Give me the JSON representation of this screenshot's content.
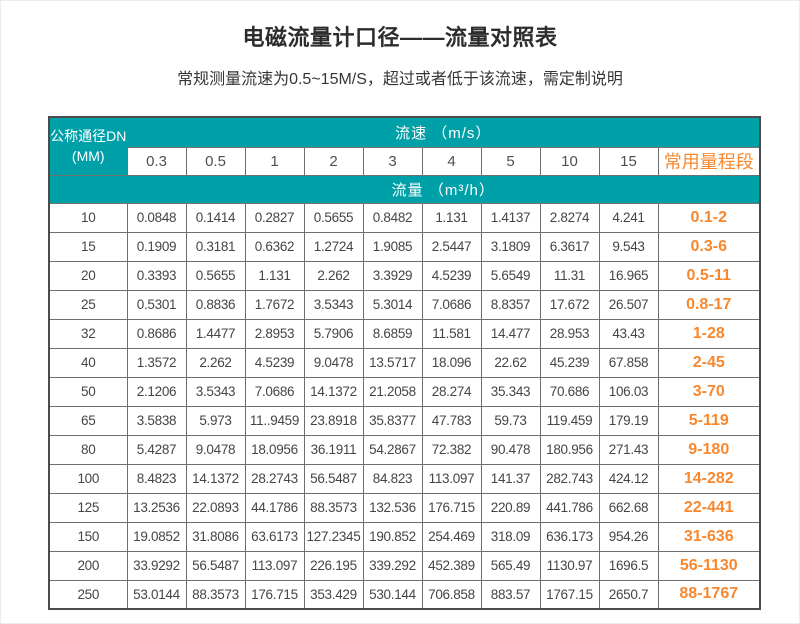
{
  "page": {
    "title": "电磁流量计口径——流量对照表",
    "subtitle": "常规测量流速为0.5~15M/S，超过或者低于该流速，需定制说明"
  },
  "colors": {
    "teal_header": "#00A0A8",
    "accent_orange": "#F7882F",
    "grid_line": "#6F6F6F",
    "data_text": "#454545"
  },
  "chart_data": {
    "type": "table",
    "title": "电磁流量计口径——流量对照表",
    "corner": {
      "line1": "公称通径DN",
      "line2": "(MM)"
    },
    "speed_group_header": "流速 （m/s）",
    "flow_group_header": "流量 （m³/h）",
    "range_header": "常用量程段",
    "speed_columns": [
      "0.3",
      "0.5",
      "1",
      "2",
      "3",
      "4",
      "5",
      "10",
      "15"
    ],
    "rows": [
      {
        "dn": "10",
        "values": [
          "0.0848",
          "0.1414",
          "0.2827",
          "0.5655",
          "0.8482",
          "1.131",
          "1.4137",
          "2.8274",
          "4.241"
        ],
        "range": "0.1-2"
      },
      {
        "dn": "15",
        "values": [
          "0.1909",
          "0.3181",
          "0.6362",
          "1.2724",
          "1.9085",
          "2.5447",
          "3.1809",
          "6.3617",
          "9.543"
        ],
        "range": "0.3-6"
      },
      {
        "dn": "20",
        "values": [
          "0.3393",
          "0.5655",
          "1.131",
          "2.262",
          "3.3929",
          "4.5239",
          "5.6549",
          "11.31",
          "16.965"
        ],
        "range": "0.5-11"
      },
      {
        "dn": "25",
        "values": [
          "0.5301",
          "0.8836",
          "1.7672",
          "3.5343",
          "5.3014",
          "7.0686",
          "8.8357",
          "17.672",
          "26.507"
        ],
        "range": "0.8-17"
      },
      {
        "dn": "32",
        "values": [
          "0.8686",
          "1.4477",
          "2.8953",
          "5.7906",
          "8.6859",
          "11.581",
          "14.477",
          "28.953",
          "43.43"
        ],
        "range": "1-28"
      },
      {
        "dn": "40",
        "values": [
          "1.3572",
          "2.262",
          "4.5239",
          "9.0478",
          "13.5717",
          "18.096",
          "22.62",
          "45.239",
          "67.858"
        ],
        "range": "2-45"
      },
      {
        "dn": "50",
        "values": [
          "2.1206",
          "3.5343",
          "7.0686",
          "14.1372",
          "21.2058",
          "28.274",
          "35.343",
          "70.686",
          "106.03"
        ],
        "range": "3-70"
      },
      {
        "dn": "65",
        "values": [
          "3.5838",
          "5.973",
          "11..9459",
          "23.8918",
          "35.8377",
          "47.783",
          "59.73",
          "119.459",
          "179.19"
        ],
        "range": "5-119"
      },
      {
        "dn": "80",
        "values": [
          "5.4287",
          "9.0478",
          "18.0956",
          "36.1911",
          "54.2867",
          "72.382",
          "90.478",
          "180.956",
          "271.43"
        ],
        "range": "9-180"
      },
      {
        "dn": "100",
        "values": [
          "8.4823",
          "14.1372",
          "28.2743",
          "56.5487",
          "84.823",
          "113.097",
          "141.37",
          "282.743",
          "424.12"
        ],
        "range": "14-282"
      },
      {
        "dn": "125",
        "values": [
          "13.2536",
          "22.0893",
          "44.1786",
          "88.3573",
          "132.536",
          "176.715",
          "220.89",
          "441.786",
          "662.68"
        ],
        "range": "22-441"
      },
      {
        "dn": "150",
        "values": [
          "19.0852",
          "31.8086",
          "63.6173",
          "127.2345",
          "190.852",
          "254.469",
          "318.09",
          "636.173",
          "954.26"
        ],
        "range": "31-636"
      },
      {
        "dn": "200",
        "values": [
          "33.9292",
          "56.5487",
          "113.097",
          "226.195",
          "339.292",
          "452.389",
          "565.49",
          "1130.97",
          "1696.5"
        ],
        "range": "56-1130"
      },
      {
        "dn": "250",
        "values": [
          "53.0144",
          "88.3573",
          "176.715",
          "353.429",
          "530.144",
          "706.858",
          "883.57",
          "1767.15",
          "2650.7"
        ],
        "range": "88-1767"
      }
    ]
  }
}
